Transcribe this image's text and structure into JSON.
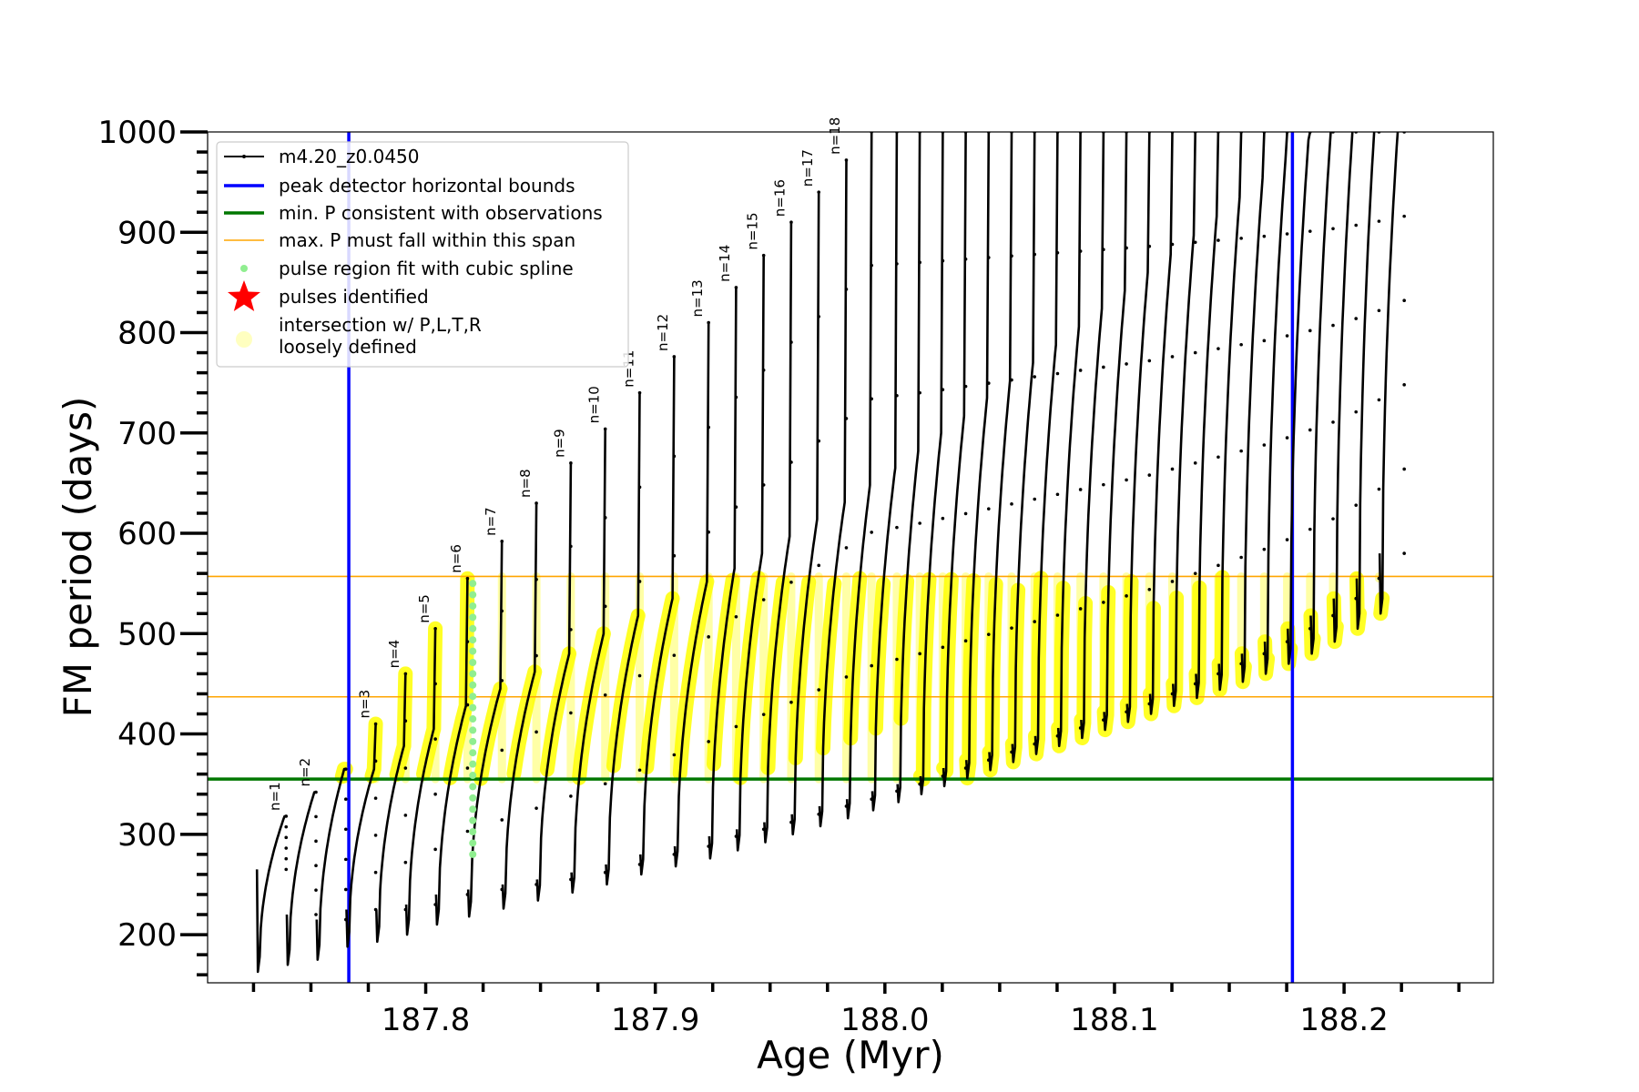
{
  "chart_data": {
    "type": "line",
    "xlabel": "Age (Myr)",
    "ylabel": "FM period (days)",
    "xlim": [
      187.705,
      188.265
    ],
    "ylim": [
      152,
      1000
    ],
    "xticks": [
      187.8,
      187.9,
      188.0,
      188.1,
      188.2
    ],
    "xtick_labels": [
      "187.8",
      "187.9",
      "188.0",
      "188.1",
      "188.2"
    ],
    "yticks": [
      200,
      300,
      400,
      500,
      600,
      700,
      800,
      900,
      1000
    ],
    "ytick_labels": [
      "200",
      "300",
      "400",
      "500",
      "600",
      "700",
      "800",
      "900",
      "1000"
    ],
    "grid": false,
    "legend_position": "top-left",
    "legend": [
      {
        "label": "m4.20_z0.0450",
        "style": "line-dot",
        "color": "#000000"
      },
      {
        "label": "peak detector horizontal bounds",
        "style": "line",
        "color": "#0000ff"
      },
      {
        "label": "min. P consistent with observations",
        "style": "line",
        "color": "#007700"
      },
      {
        "label": "max. P must fall within this span",
        "style": "thin-line",
        "color": "#ffa500"
      },
      {
        "label": "pulse region fit with cubic spline",
        "style": "dot",
        "color": "#90ee90"
      },
      {
        "label": "pulses identified",
        "style": "star",
        "color": "#ff0000"
      },
      {
        "label": "intersection w/ P,L,T,R\nloosely defined",
        "style": "circle",
        "color": "#ffffc0"
      }
    ],
    "series_name": "m4.20_z0.0450",
    "pulses": [
      {
        "start": 187.7265,
        "end": 187.7395,
        "baseline": 265,
        "min": 163,
        "envelope": 318,
        "spike": 318,
        "label": "n=1"
      },
      {
        "start": 187.7395,
        "end": 187.7525,
        "baseline": 220,
        "min": 170,
        "envelope": 342,
        "spike": 342,
        "label": "n=2"
      },
      {
        "start": 187.7525,
        "end": 187.7655,
        "baseline": 215,
        "min": 175,
        "envelope": 365,
        "spike": 365,
        "label": ""
      },
      {
        "start": 187.7655,
        "end": 187.7785,
        "baseline": 225,
        "min": 188,
        "envelope": 365,
        "spike": 410,
        "label": "n=3"
      },
      {
        "start": 187.7785,
        "end": 187.7915,
        "baseline": 225,
        "min": 193,
        "envelope": 388,
        "spike": 460,
        "label": "n=4"
      },
      {
        "start": 187.7915,
        "end": 187.8045,
        "baseline": 230,
        "min": 200,
        "envelope": 405,
        "spike": 505,
        "label": "n=5"
      },
      {
        "start": 187.8045,
        "end": 187.8185,
        "baseline": 240,
        "min": 210,
        "envelope": 428,
        "spike": 555,
        "label": "n=6"
      },
      {
        "start": 187.8185,
        "end": 187.8335,
        "baseline": 245,
        "min": 218,
        "envelope": 445,
        "spike": 592,
        "label": "n=7"
      },
      {
        "start": 187.8335,
        "end": 187.8485,
        "baseline": 250,
        "min": 226,
        "envelope": 462,
        "spike": 630,
        "label": "n=8"
      },
      {
        "start": 187.8485,
        "end": 187.8635,
        "baseline": 255,
        "min": 234,
        "envelope": 480,
        "spike": 670,
        "label": "n=9"
      },
      {
        "start": 187.8635,
        "end": 187.8785,
        "baseline": 262,
        "min": 242,
        "envelope": 500,
        "spike": 704,
        "label": "n=10"
      },
      {
        "start": 187.8785,
        "end": 187.8935,
        "baseline": 270,
        "min": 250,
        "envelope": 518,
        "spike": 740,
        "label": "n=11"
      },
      {
        "start": 187.8935,
        "end": 187.9085,
        "baseline": 280,
        "min": 260,
        "envelope": 535,
        "spike": 776,
        "label": "n=12"
      },
      {
        "start": 187.9085,
        "end": 187.9235,
        "baseline": 288,
        "min": 268,
        "envelope": 552,
        "spike": 810,
        "label": "n=13"
      },
      {
        "start": 187.9235,
        "end": 187.9355,
        "baseline": 298,
        "min": 276,
        "envelope": 565,
        "spike": 845,
        "label": "n=14"
      },
      {
        "start": 187.9355,
        "end": 187.9475,
        "baseline": 305,
        "min": 284,
        "envelope": 580,
        "spike": 877,
        "label": "n=15"
      },
      {
        "start": 187.9475,
        "end": 187.9595,
        "baseline": 312,
        "min": 292,
        "envelope": 597,
        "spike": 910,
        "label": "n=16"
      },
      {
        "start": 187.9595,
        "end": 187.9715,
        "baseline": 320,
        "min": 300,
        "envelope": 614,
        "spike": 940,
        "label": "n=17"
      },
      {
        "start": 187.9715,
        "end": 187.9835,
        "baseline": 328,
        "min": 308,
        "envelope": 631,
        "spike": 972,
        "label": "n=18"
      },
      {
        "start": 187.9835,
        "end": 187.9945,
        "baseline": 335,
        "min": 316,
        "envelope": 648,
        "spike": 1000,
        "label": ""
      },
      {
        "start": 187.9945,
        "end": 188.0055,
        "baseline": 343,
        "min": 324,
        "envelope": 665,
        "spike": 1000,
        "label": ""
      },
      {
        "start": 188.0055,
        "end": 188.0155,
        "baseline": 350,
        "min": 332,
        "envelope": 682,
        "spike": 1000,
        "label": ""
      },
      {
        "start": 188.0155,
        "end": 188.0255,
        "baseline": 358,
        "min": 340,
        "envelope": 700,
        "spike": 1000,
        "label": ""
      },
      {
        "start": 188.0255,
        "end": 188.0355,
        "baseline": 366,
        "min": 348,
        "envelope": 717,
        "spike": 1000,
        "label": ""
      },
      {
        "start": 188.0355,
        "end": 188.0455,
        "baseline": 374,
        "min": 356,
        "envelope": 735,
        "spike": 1000,
        "label": ""
      },
      {
        "start": 188.0455,
        "end": 188.0555,
        "baseline": 382,
        "min": 364,
        "envelope": 752,
        "spike": 1000,
        "label": ""
      },
      {
        "start": 188.0555,
        "end": 188.0655,
        "baseline": 390,
        "min": 372,
        "envelope": 770,
        "spike": 1000,
        "label": ""
      },
      {
        "start": 188.0655,
        "end": 188.0755,
        "baseline": 398,
        "min": 380,
        "envelope": 788,
        "spike": 1000,
        "label": ""
      },
      {
        "start": 188.0755,
        "end": 188.0855,
        "baseline": 406,
        "min": 388,
        "envelope": 806,
        "spike": 1000,
        "label": ""
      },
      {
        "start": 188.0855,
        "end": 188.0955,
        "baseline": 414,
        "min": 396,
        "envelope": 824,
        "spike": 1000,
        "label": ""
      },
      {
        "start": 188.0955,
        "end": 188.1055,
        "baseline": 422,
        "min": 404,
        "envelope": 842,
        "spike": 1000,
        "label": ""
      },
      {
        "start": 188.1055,
        "end": 188.1155,
        "baseline": 430,
        "min": 412,
        "envelope": 860,
        "spike": 1000,
        "label": ""
      },
      {
        "start": 188.1155,
        "end": 188.1255,
        "baseline": 440,
        "min": 420,
        "envelope": 878,
        "spike": 1000,
        "label": ""
      },
      {
        "start": 188.1255,
        "end": 188.1355,
        "baseline": 450,
        "min": 428,
        "envelope": 897,
        "spike": 1000,
        "label": ""
      },
      {
        "start": 188.1355,
        "end": 188.1455,
        "baseline": 460,
        "min": 436,
        "envelope": 916,
        "spike": 1000,
        "label": ""
      },
      {
        "start": 188.1455,
        "end": 188.1555,
        "baseline": 470,
        "min": 444,
        "envelope": 935,
        "spike": 1000,
        "label": ""
      },
      {
        "start": 188.1555,
        "end": 188.1655,
        "baseline": 480,
        "min": 452,
        "envelope": 954,
        "spike": 1000,
        "label": ""
      },
      {
        "start": 188.1655,
        "end": 188.1755,
        "baseline": 492,
        "min": 460,
        "envelope": 973,
        "spike": 1000,
        "label": ""
      },
      {
        "start": 188.1755,
        "end": 188.1855,
        "baseline": 505,
        "min": 470,
        "envelope": 992,
        "spike": 1000,
        "label": ""
      },
      {
        "start": 188.1855,
        "end": 188.1955,
        "baseline": 518,
        "min": 480,
        "envelope": 1010,
        "spike": 1000,
        "label": ""
      },
      {
        "start": 188.1955,
        "end": 188.2055,
        "baseline": 535,
        "min": 492,
        "envelope": 1030,
        "spike": 1000,
        "label": ""
      },
      {
        "start": 188.2055,
        "end": 188.2155,
        "baseline": 555,
        "min": 505,
        "envelope": 1050,
        "spike": 1000,
        "label": ""
      },
      {
        "start": 188.2155,
        "end": 188.2265,
        "baseline": 580,
        "min": 520,
        "envelope": 1070,
        "spike": 1000,
        "label": ""
      }
    ],
    "vertical_lines": [
      {
        "x": 187.7665,
        "color": "#0000ff",
        "kind": "peak detector horizontal bounds"
      },
      {
        "x": 188.1775,
        "color": "#0000ff",
        "kind": "peak detector horizontal bounds"
      }
    ],
    "horizontal_lines": [
      {
        "y": 355,
        "color": "#007700",
        "kind": "min. P consistent with observations"
      },
      {
        "y": 437,
        "color": "#ffa500",
        "kind": "max. P must fall within this span"
      },
      {
        "y": 557,
        "color": "#ffa500",
        "kind": "max. P must fall within this span"
      }
    ],
    "spline_region": {
      "x": 187.8205,
      "y_range": [
        280,
        550
      ],
      "color": "#90ee90"
    },
    "highlight_region": {
      "y_range": [
        355,
        557
      ],
      "color": "#ffff00"
    },
    "colors": {
      "series": "#000000",
      "bounds": "#0000ff",
      "min_period": "#007700",
      "max_period": "#ffa500",
      "spline": "#90ee90",
      "pulses": "#ff0000",
      "intersection": "#ffff00"
    }
  }
}
